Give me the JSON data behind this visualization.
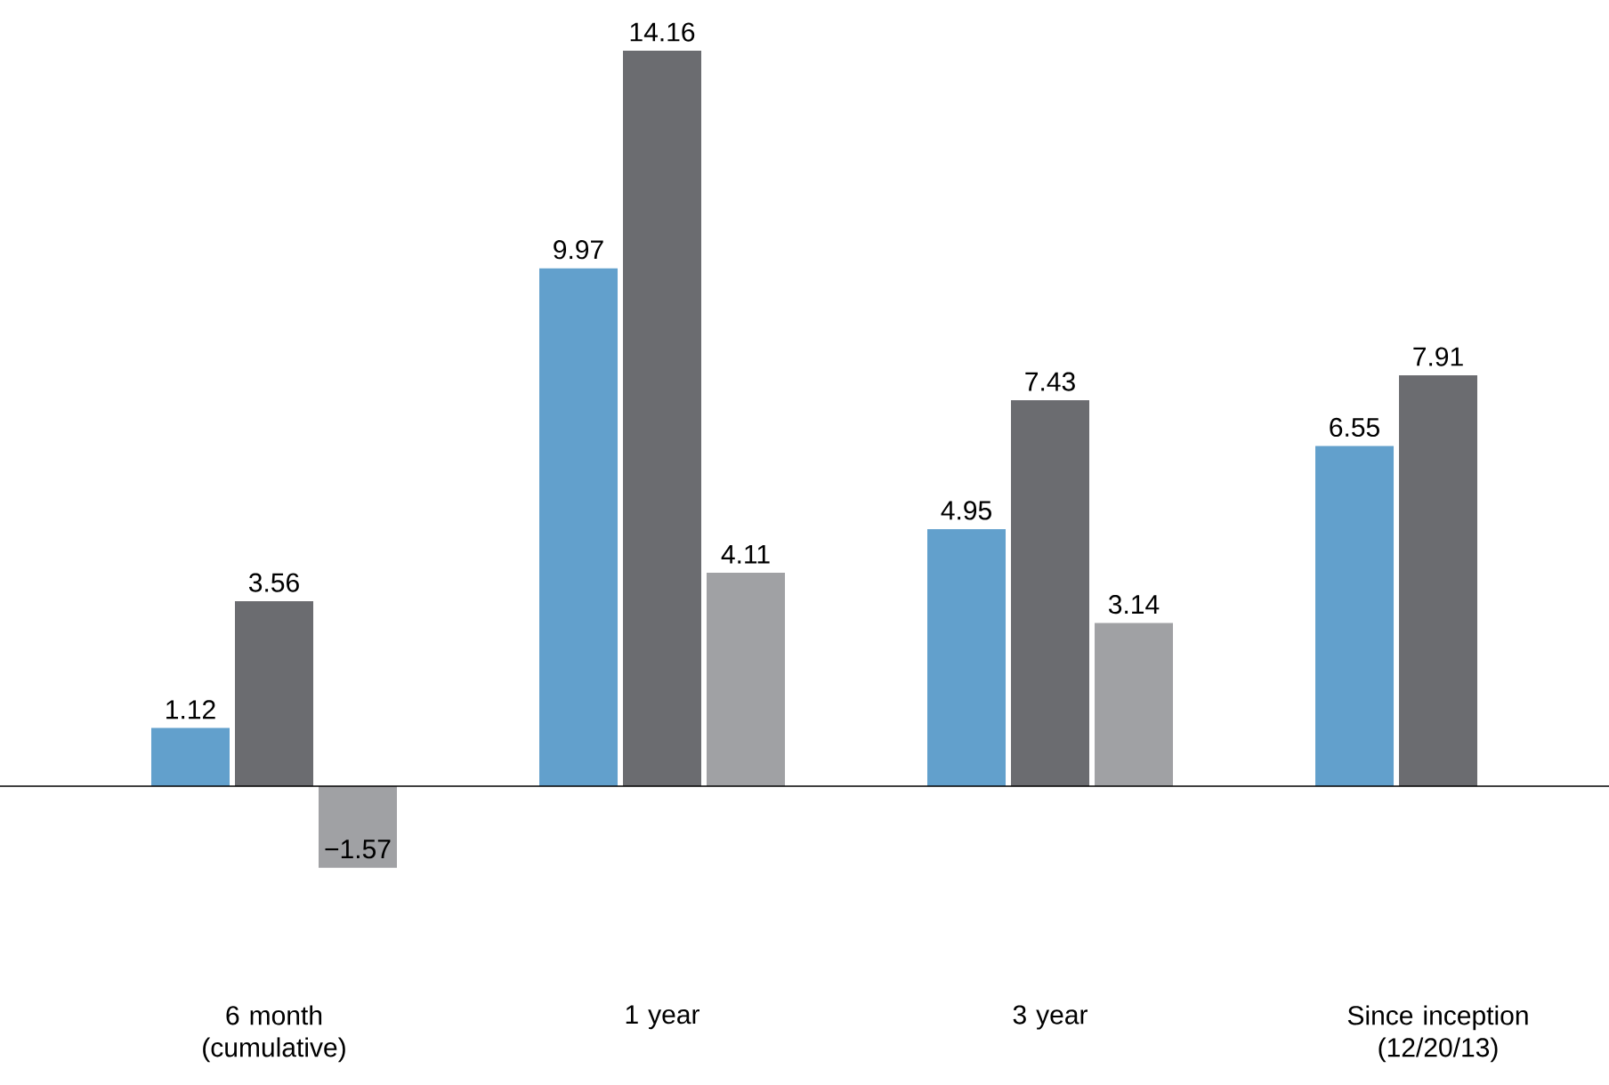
{
  "chart_data": {
    "type": "bar",
    "categories": [
      "6 month (cumulative)",
      "1 year",
      "3 year",
      "Since inception (12/20/13)"
    ],
    "series": [
      {
        "color": "#62a0cc",
        "values": [
          1.12,
          9.97,
          4.95,
          6.55
        ],
        "value_labels": [
          "1.12",
          "9.97",
          "4.95",
          "6.55"
        ]
      },
      {
        "color": "#6b6c70",
        "values": [
          3.56,
          14.16,
          7.43,
          7.91
        ],
        "value_labels": [
          "3.56",
          "14.16",
          "7.43",
          "7.91"
        ]
      },
      {
        "color": "#a0a1a4",
        "values": [
          -1.57,
          4.11,
          3.14,
          null
        ],
        "value_labels": [
          "−1.57",
          "4.11",
          "3.14",
          null
        ]
      }
    ]
  }
}
